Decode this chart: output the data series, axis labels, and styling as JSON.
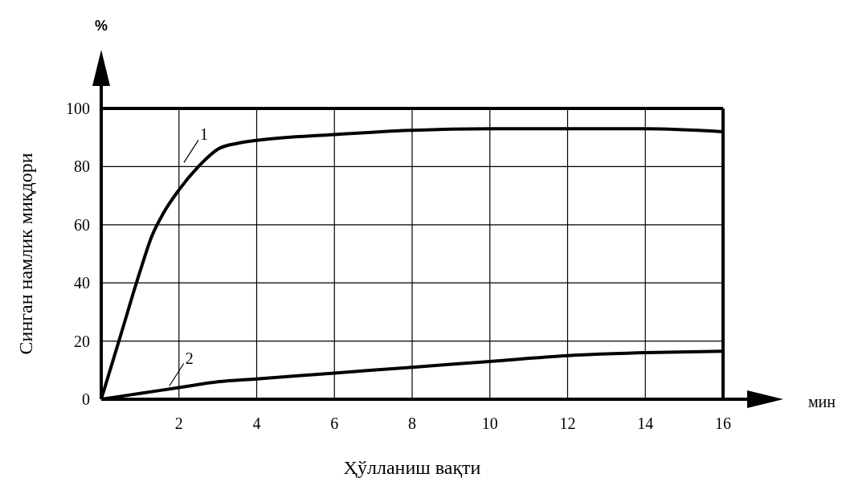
{
  "chart_data": {
    "type": "line",
    "xlabel": "Ҳўлланиш вақти",
    "ylabel": "Синган намлик миқдори",
    "annotations": [
      "%",
      "мин"
    ],
    "xlim": [
      0,
      16
    ],
    "ylim": [
      0,
      100
    ],
    "xticks": [
      2,
      4,
      6,
      8,
      10,
      12,
      14,
      16
    ],
    "yticks": [
      0,
      20,
      40,
      60,
      80,
      100
    ],
    "grid": true,
    "marker": "none",
    "line_style": "solid",
    "series": [
      {
        "name": "1",
        "color": "#000000",
        "x": [
          0,
          0.5,
          1,
          1.3,
          1.6,
          2,
          2.5,
          3,
          3.5,
          4,
          6,
          8,
          10,
          12,
          14,
          16
        ],
        "values": [
          0,
          22,
          44,
          56,
          64,
          72,
          80,
          86,
          88,
          89,
          91,
          92.5,
          93,
          93,
          93,
          92
        ]
      },
      {
        "name": "2",
        "color": "#000000",
        "x": [
          0,
          1,
          2,
          3,
          4,
          6,
          8,
          10,
          12,
          14,
          16
        ],
        "values": [
          0,
          2,
          4,
          6,
          7,
          9,
          11,
          13,
          15,
          16,
          16.5
        ]
      }
    ]
  }
}
